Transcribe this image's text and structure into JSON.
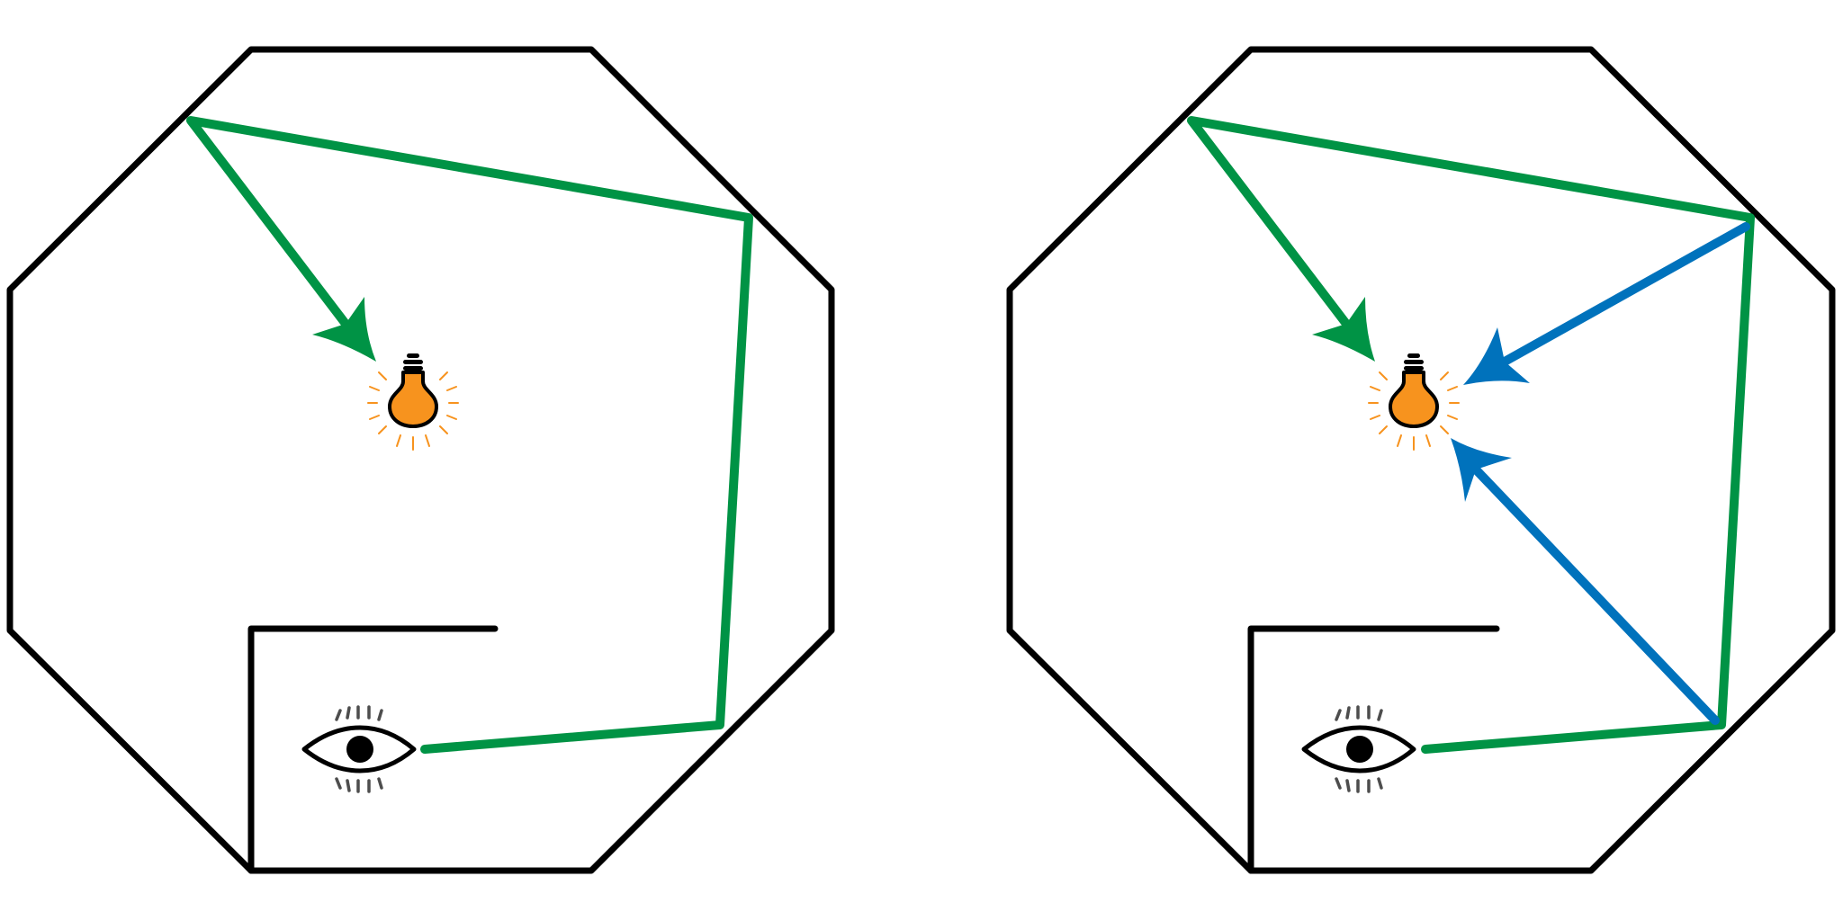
{
  "colors": {
    "wall": "#000000",
    "green_path": "#009345",
    "blue_path": "#0072bc",
    "bulb_fill": "#f7931e",
    "bulb_rays": "#f7931e",
    "eye_outline": "#000000",
    "lashes": "#4d4d4d",
    "background": "#ffffff"
  },
  "panels": [
    {
      "name": "left-room",
      "shows_blue_reflections": false
    },
    {
      "name": "right-room",
      "shows_blue_reflections": true
    }
  ],
  "icons": {
    "light": "lightbulb-icon",
    "observer": "eye-icon"
  }
}
